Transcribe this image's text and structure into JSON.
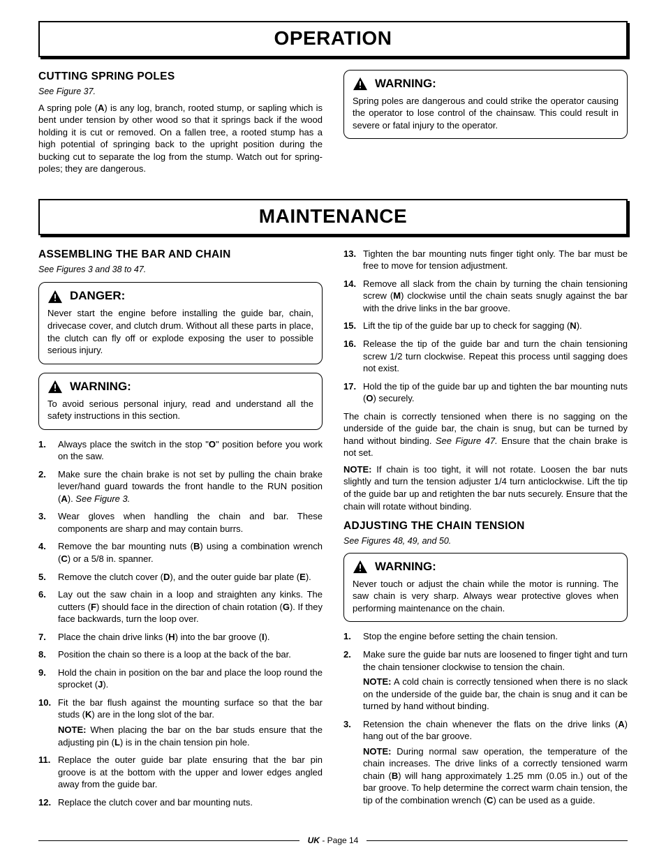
{
  "headers": {
    "operation": "OPERATION",
    "maintenance": "MAINTENANCE"
  },
  "operation": {
    "left": {
      "title": "CUTTING SPRING POLES",
      "figref": "See Figure 37.",
      "body": "A spring pole (A) is any log, branch, rooted stump, or sapling which is bent under tension by other wood so that it springs back if the wood holding it is cut or removed. On a fallen tree, a rooted stump has a high potential of springing back to the upright position during the bucking cut to separate the log from the stump. Watch out for spring-poles; they are dangerous."
    },
    "right_warning": {
      "title": "WARNING:",
      "body": "Spring poles are dangerous and could strike the operator causing the operator to lose control of the chainsaw. This could result in severe or fatal injury to the operator."
    }
  },
  "maintenance": {
    "assembling": {
      "title": "ASSEMBLING THE BAR AND CHAIN",
      "figref": "See Figures 3 and 38 to 47."
    },
    "danger": {
      "title": "DANGER:",
      "body": "Never start the engine before installing the guide bar, chain, drivecase cover, and clutch drum. Without all these parts in place, the clutch can fly off or explode exposing the user to possible serious injury."
    },
    "warning1": {
      "title": "WARNING:",
      "body": "To avoid serious personal injury, read and understand all the safety instructions in this section."
    },
    "steps_left": [
      {
        "n": "1.",
        "t": "Always place the switch in the stop \"O\" position before you work on the saw."
      },
      {
        "n": "2.",
        "t": "Make sure the chain brake is not set by pulling the chain brake lever/hand guard towards the front handle to the RUN position (A). See Figure 3."
      },
      {
        "n": "3.",
        "t": "Wear gloves when handling the chain and bar. These components are sharp and may contain burrs."
      },
      {
        "n": "4.",
        "t": "Remove the bar mounting nuts (B) using a combination wrench (C) or a 5/8 in. spanner."
      },
      {
        "n": "5.",
        "t": "Remove the clutch cover (D), and the outer guide bar plate (E)."
      },
      {
        "n": "6.",
        "t": "Lay out the saw chain in a loop and straighten any kinks. The cutters (F) should face in the direction of chain rotation (G). If they face backwards, turn the loop over."
      },
      {
        "n": "7.",
        "t": "Place the chain drive links (H) into the bar groove (I)."
      },
      {
        "n": "8.",
        "t": "Position the chain so there is a loop at the back of the bar."
      },
      {
        "n": "9.",
        "t": "Hold the chain in position on the bar and place the loop round the sprocket (J)."
      },
      {
        "n": "10.",
        "t": "Fit the bar flush against the mounting surface so that the bar studs (K) are in the long slot of the bar.",
        "note": "NOTE: When placing the bar on the bar studs ensure that the adjusting pin (L) is in the chain tension pin hole."
      },
      {
        "n": "11.",
        "t": "Replace the outer guide bar plate ensuring that the bar pin groove is at the bottom with the upper and lower edges angled away from the guide bar."
      },
      {
        "n": "12.",
        "t": "Replace the clutch cover and bar mounting nuts."
      }
    ],
    "steps_right": [
      {
        "n": "13.",
        "t": "Tighten the bar mounting nuts finger tight only. The bar must be free to move for tension adjustment."
      },
      {
        "n": "14.",
        "t": "Remove all slack from the chain by turning the chain tensioning screw (M) clockwise until the chain seats snugly against the bar with the drive links in the bar groove."
      },
      {
        "n": "15.",
        "t": "Lift the tip of the guide bar up to check for sagging (N)."
      },
      {
        "n": "16.",
        "t": "Release the tip of the guide bar and turn the chain tensioning screw 1/2 turn clockwise. Repeat this process until sagging does not exist."
      },
      {
        "n": "17.",
        "t": "Hold the tip of the guide bar up and tighten the bar mounting nuts (O) securely."
      }
    ],
    "tension_para1": "The chain is correctly tensioned when there is no sagging on the underside of the guide bar, the chain is snug, but can be turned by hand without binding. See Figure 47. Ensure that the chain brake is not set.",
    "tension_para2": "NOTE: If chain is too tight, it will not rotate. Loosen the bar nuts slightly and turn the tension adjuster 1/4 turn anticlockwise. Lift the tip of the guide bar up and retighten the bar nuts securely. Ensure that the chain will rotate without binding.",
    "adjusting": {
      "title": "ADJUSTING THE CHAIN TENSION",
      "figref": "See Figures 48, 49, and 50."
    },
    "warning2": {
      "title": "WARNING:",
      "body": "Never touch or adjust the chain while the motor is running. The saw chain is very sharp. Always wear protective gloves when performing maintenance on the chain."
    },
    "adjust_steps": [
      {
        "n": "1.",
        "t": "Stop the engine before setting the chain tension."
      },
      {
        "n": "2.",
        "t": "Make sure the guide bar nuts are loosened to finger tight and turn the chain tensioner clockwise to tension the chain.",
        "note": "NOTE: A cold chain is correctly tensioned when there is no slack on the underside of the guide bar, the chain is snug and it can be turned by hand without binding."
      },
      {
        "n": "3.",
        "t": "Retension the chain whenever the flats on the drive links (A) hang out of the bar groove.",
        "note": "NOTE: During normal saw operation, the temperature of the chain increases. The drive links of a correctly tensioned warm chain (B) will hang approximately 1.25 mm (0.05 in.) out of the bar groove. To help determine the correct warm chain tension, the tip of the combination wrench (C) can be used as a guide."
      }
    ]
  },
  "footer": {
    "region": "UK",
    "page": " - Page 14"
  }
}
